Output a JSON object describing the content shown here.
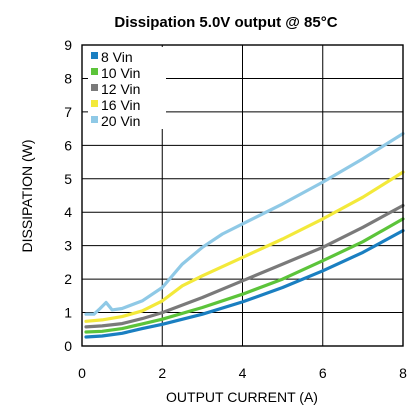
{
  "chart_data": {
    "type": "line",
    "title": "Dissipation 5.0V output @ 85°C",
    "xlabel": "OUTPUT CURRENT (A)",
    "ylabel": "DISSIPATION (W)",
    "xlim": [
      0,
      8
    ],
    "ylim": [
      0,
      9
    ],
    "xticks": [
      "0",
      "2",
      "4",
      "6",
      "8"
    ],
    "yticks": [
      "0",
      "1",
      "2",
      "3",
      "4",
      "5",
      "6",
      "7",
      "8",
      "9"
    ],
    "grid": "major",
    "legend_position": "top-left",
    "series": [
      {
        "name": "8 Vin",
        "color": "#1a7fc1",
        "points": [
          [
            0.1,
            0.27
          ],
          [
            0.5,
            0.3
          ],
          [
            1,
            0.38
          ],
          [
            1.5,
            0.52
          ],
          [
            2,
            0.65
          ],
          [
            3,
            0.95
          ],
          [
            4,
            1.32
          ],
          [
            5,
            1.75
          ],
          [
            6,
            2.25
          ],
          [
            7,
            2.8
          ],
          [
            8,
            3.45
          ]
        ]
      },
      {
        "name": "10 Vin",
        "color": "#5cc43a",
        "points": [
          [
            0.1,
            0.42
          ],
          [
            0.5,
            0.44
          ],
          [
            1,
            0.52
          ],
          [
            1.5,
            0.66
          ],
          [
            2,
            0.8
          ],
          [
            3,
            1.15
          ],
          [
            4,
            1.55
          ],
          [
            5,
            2.0
          ],
          [
            6,
            2.55
          ],
          [
            7,
            3.12
          ],
          [
            8,
            3.8
          ]
        ]
      },
      {
        "name": "12 Vin",
        "color": "#7a7a7a",
        "points": [
          [
            0.1,
            0.57
          ],
          [
            0.5,
            0.6
          ],
          [
            1,
            0.67
          ],
          [
            1.5,
            0.82
          ],
          [
            2,
            1.0
          ],
          [
            3,
            1.45
          ],
          [
            4,
            1.95
          ],
          [
            5,
            2.45
          ],
          [
            6,
            2.95
          ],
          [
            7,
            3.55
          ],
          [
            8,
            4.2
          ]
        ]
      },
      {
        "name": "16 Vin",
        "color": "#f3e93a",
        "points": [
          [
            0.1,
            0.74
          ],
          [
            0.5,
            0.78
          ],
          [
            1,
            0.88
          ],
          [
            1.5,
            1.05
          ],
          [
            2,
            1.35
          ],
          [
            2.5,
            1.8
          ],
          [
            3,
            2.1
          ],
          [
            4,
            2.65
          ],
          [
            5,
            3.2
          ],
          [
            6,
            3.8
          ],
          [
            7,
            4.45
          ],
          [
            8,
            5.2
          ]
        ]
      },
      {
        "name": "20 Vin",
        "color": "#8fc9e6",
        "points": [
          [
            0.1,
            0.95
          ],
          [
            0.3,
            0.95
          ],
          [
            0.45,
            1.12
          ],
          [
            0.6,
            1.3
          ],
          [
            0.75,
            1.08
          ],
          [
            1,
            1.12
          ],
          [
            1.5,
            1.35
          ],
          [
            2,
            1.75
          ],
          [
            2.5,
            2.45
          ],
          [
            3,
            2.95
          ],
          [
            3.5,
            3.35
          ],
          [
            4,
            3.65
          ],
          [
            5,
            4.25
          ],
          [
            6,
            4.9
          ],
          [
            7,
            5.6
          ],
          [
            8,
            6.35
          ]
        ]
      }
    ]
  }
}
